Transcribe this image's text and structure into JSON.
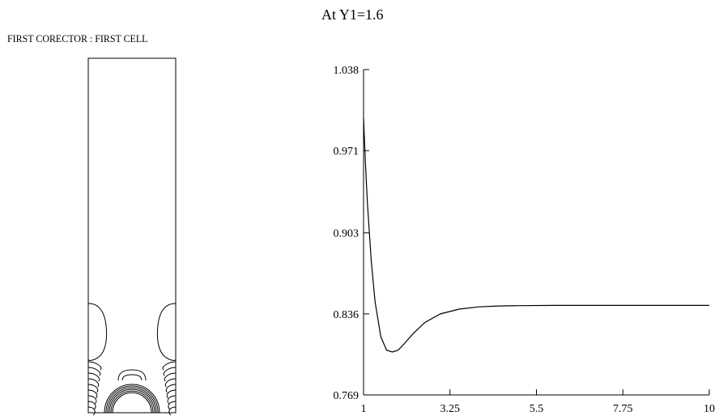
{
  "panels": {
    "left_title": "FIRST CORECTOR : FIRST CELL",
    "right_title": "At Y1=1.6"
  },
  "chart_data": [
    {
      "type": "contour",
      "title": "FIRST CORECTOR : FIRST CELL",
      "axes_visible": false,
      "grid": false
    },
    {
      "type": "line",
      "title": "At Y1=1.6",
      "xlabel": "",
      "ylabel": "",
      "xlim": [
        1,
        10
      ],
      "ylim": [
        0.769,
        1.038
      ],
      "xticks": [
        "1",
        "3.25",
        "5.5",
        "7.75",
        "10"
      ],
      "yticks": [
        "0.769",
        "0.836",
        "0.903",
        "0.971",
        "1.038"
      ],
      "grid": false,
      "series": [
        {
          "x": [
            1,
            1.05,
            1.1,
            1.2,
            1.3,
            1.45,
            1.6,
            1.75,
            1.9,
            2.05,
            2.3,
            2.6,
            3.0,
            3.5,
            4.0,
            4.5,
            5.0,
            6.0,
            7.0,
            8.0,
            9.0,
            10.0
          ],
          "y": [
            0.998,
            0.96,
            0.928,
            0.88,
            0.846,
            0.817,
            0.806,
            0.8045,
            0.806,
            0.811,
            0.82,
            0.829,
            0.836,
            0.84,
            0.8418,
            0.8425,
            0.8428,
            0.843,
            0.843,
            0.843,
            0.843,
            0.843
          ]
        }
      ]
    }
  ]
}
